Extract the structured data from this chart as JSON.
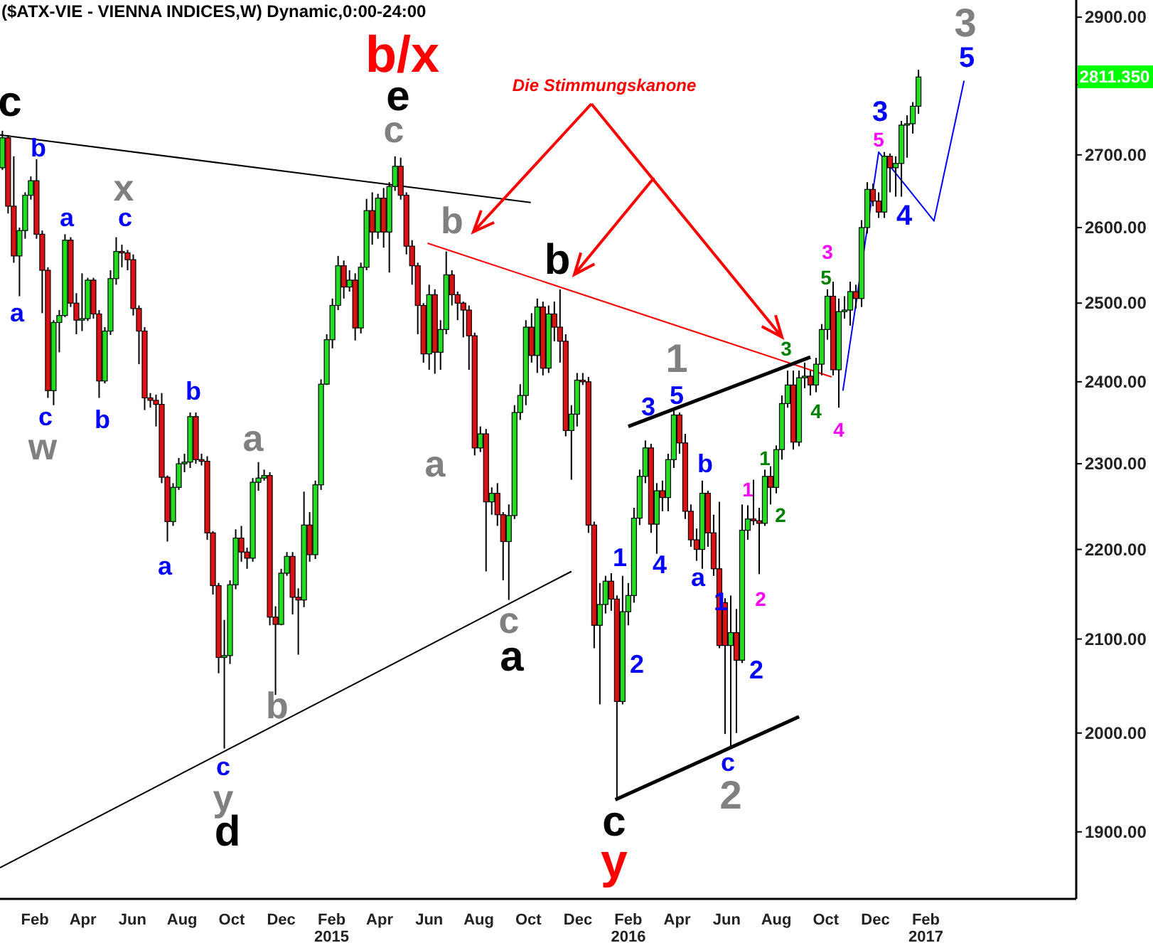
{
  "chart_data": {
    "type": "candlestick",
    "title": "($ATX-VIE - VIENNA INDICES,W) Dynamic,0:00-24:00",
    "x": [
      "2013-12-23",
      "2013-12-30",
      "2014-01-06",
      "2014-01-13",
      "2014-01-20",
      "2014-01-27",
      "2014-02-03",
      "2014-02-10",
      "2014-02-17",
      "2014-02-24",
      "2014-03-03",
      "2014-03-10",
      "2014-03-17",
      "2014-03-24",
      "2014-03-31",
      "2014-04-07",
      "2014-04-14",
      "2014-04-21",
      "2014-04-28",
      "2014-05-05",
      "2014-05-12",
      "2014-05-19",
      "2014-05-26",
      "2014-06-02",
      "2014-06-09",
      "2014-06-16",
      "2014-06-23",
      "2014-06-30",
      "2014-07-07",
      "2014-07-14",
      "2014-07-21",
      "2014-07-28",
      "2014-08-04",
      "2014-08-11",
      "2014-08-18",
      "2014-08-25",
      "2014-09-01",
      "2014-09-08",
      "2014-09-15",
      "2014-09-22",
      "2014-09-29",
      "2014-10-06",
      "2014-10-13",
      "2014-10-20",
      "2014-10-27",
      "2014-11-03",
      "2014-11-10",
      "2014-11-17",
      "2014-11-24",
      "2014-12-01",
      "2014-12-08",
      "2014-12-15",
      "2014-12-22",
      "2014-12-29",
      "2015-01-05",
      "2015-01-12",
      "2015-01-19",
      "2015-01-26",
      "2015-02-02",
      "2015-02-09",
      "2015-02-16",
      "2015-02-23",
      "2015-03-02",
      "2015-03-09",
      "2015-03-16",
      "2015-03-23",
      "2015-03-30",
      "2015-04-06",
      "2015-04-13",
      "2015-04-20",
      "2015-04-27",
      "2015-05-04",
      "2015-05-11",
      "2015-05-18",
      "2015-05-25",
      "2015-06-01",
      "2015-06-08",
      "2015-06-15",
      "2015-06-22",
      "2015-06-29",
      "2015-07-06",
      "2015-07-13",
      "2015-07-20",
      "2015-07-27",
      "2015-08-03",
      "2015-08-10",
      "2015-08-17",
      "2015-08-24",
      "2015-08-31",
      "2015-09-07",
      "2015-09-14",
      "2015-09-21",
      "2015-09-28",
      "2015-10-05",
      "2015-10-12",
      "2015-10-19",
      "2015-10-26",
      "2015-11-02",
      "2015-11-09",
      "2015-11-16",
      "2015-11-23",
      "2015-11-30",
      "2015-12-07",
      "2015-12-14",
      "2015-12-21",
      "2015-12-28",
      "2016-01-04",
      "2016-01-11",
      "2016-01-18",
      "2016-01-25",
      "2016-02-01",
      "2016-02-08",
      "2016-02-15",
      "2016-02-22",
      "2016-02-29",
      "2016-03-07",
      "2016-03-14",
      "2016-03-21",
      "2016-03-28",
      "2016-04-04",
      "2016-04-11",
      "2016-04-18",
      "2016-04-25",
      "2016-05-02",
      "2016-05-09",
      "2016-05-16",
      "2016-05-23",
      "2016-05-30",
      "2016-06-06",
      "2016-06-13",
      "2016-06-20",
      "2016-06-27",
      "2016-07-04",
      "2016-07-11",
      "2016-07-18",
      "2016-07-25",
      "2016-08-01",
      "2016-08-08",
      "2016-08-15",
      "2016-08-22",
      "2016-08-29",
      "2016-09-05",
      "2016-09-12",
      "2016-09-19",
      "2016-09-26",
      "2016-10-03",
      "2016-10-10",
      "2016-10-17",
      "2016-10-24",
      "2016-10-31",
      "2016-11-07",
      "2016-11-14",
      "2016-11-21",
      "2016-11-28",
      "2016-12-05",
      "2016-12-12",
      "2016-12-19",
      "2016-12-26",
      "2017-01-02",
      "2017-01-09",
      "2017-01-16",
      "2017-01-23"
    ],
    "ohlc": [
      [
        2682,
        2734,
        2679,
        2724
      ],
      [
        2724,
        2728,
        2619,
        2629
      ],
      [
        2629,
        2698,
        2553,
        2562
      ],
      [
        2562,
        2600,
        2509,
        2596
      ],
      [
        2596,
        2648,
        2585,
        2644
      ],
      [
        2644,
        2670,
        2638,
        2664
      ],
      [
        2664,
        2694,
        2585,
        2591
      ],
      [
        2591,
        2596,
        2487,
        2543
      ],
      [
        2543,
        2547,
        2380,
        2389
      ],
      [
        2389,
        2478,
        2371,
        2475
      ],
      [
        2475,
        2491,
        2437,
        2484
      ],
      [
        2484,
        2591,
        2482,
        2583
      ],
      [
        2583,
        2587,
        2495,
        2500
      ],
      [
        2500,
        2513,
        2460,
        2478
      ],
      [
        2478,
        2539,
        2464,
        2480
      ],
      [
        2480,
        2533,
        2477,
        2530
      ],
      [
        2530,
        2533,
        2480,
        2486
      ],
      [
        2486,
        2491,
        2380,
        2401
      ],
      [
        2401,
        2469,
        2398,
        2464
      ],
      [
        2464,
        2543,
        2459,
        2532
      ],
      [
        2532,
        2587,
        2524,
        2568
      ],
      [
        2568,
        2577,
        2547,
        2566
      ],
      [
        2566,
        2570,
        2543,
        2557
      ],
      [
        2557,
        2564,
        2484,
        2493
      ],
      [
        2493,
        2497,
        2422,
        2464
      ],
      [
        2464,
        2469,
        2365,
        2380
      ],
      [
        2380,
        2386,
        2368,
        2377
      ],
      [
        2377,
        2384,
        2345,
        2372
      ],
      [
        2372,
        2386,
        2277,
        2284
      ],
      [
        2284,
        2286,
        2209,
        2232
      ],
      [
        2232,
        2277,
        2227,
        2272
      ],
      [
        2272,
        2307,
        2269,
        2300
      ],
      [
        2300,
        2312,
        2290,
        2302
      ],
      [
        2302,
        2362,
        2295,
        2357
      ],
      [
        2357,
        2362,
        2300,
        2305
      ],
      [
        2305,
        2312,
        2298,
        2303
      ],
      [
        2303,
        2309,
        2211,
        2219
      ],
      [
        2219,
        2221,
        2149,
        2159
      ],
      [
        2159,
        2162,
        2063,
        2080
      ],
      [
        2080,
        2121,
        1984,
        2082
      ],
      [
        2082,
        2165,
        2073,
        2160
      ],
      [
        2160,
        2223,
        2155,
        2213
      ],
      [
        2213,
        2227,
        2186,
        2197
      ],
      [
        2197,
        2202,
        2178,
        2190
      ],
      [
        2190,
        2283,
        2186,
        2278
      ],
      [
        2278,
        2302,
        2268,
        2283
      ],
      [
        2283,
        2293,
        2280,
        2286
      ],
      [
        2286,
        2290,
        2115,
        2124
      ],
      [
        2124,
        2136,
        2040,
        2116
      ],
      [
        2116,
        2178,
        2115,
        2173
      ],
      [
        2173,
        2197,
        2170,
        2192
      ],
      [
        2192,
        2197,
        2127,
        2146
      ],
      [
        2146,
        2156,
        2083,
        2143
      ],
      [
        2143,
        2267,
        2135,
        2228
      ],
      [
        2228,
        2243,
        2186,
        2194
      ],
      [
        2194,
        2280,
        2189,
        2275
      ],
      [
        2275,
        2403,
        2269,
        2397
      ],
      [
        2397,
        2460,
        2396,
        2453
      ],
      [
        2453,
        2506,
        2442,
        2497
      ],
      [
        2497,
        2562,
        2491,
        2549
      ],
      [
        2549,
        2556,
        2506,
        2521
      ],
      [
        2521,
        2543,
        2515,
        2530
      ],
      [
        2530,
        2539,
        2452,
        2468
      ],
      [
        2468,
        2553,
        2461,
        2547
      ],
      [
        2547,
        2639,
        2543,
        2623
      ],
      [
        2623,
        2648,
        2577,
        2594
      ],
      [
        2594,
        2646,
        2585,
        2640
      ],
      [
        2640,
        2654,
        2573,
        2594
      ],
      [
        2594,
        2662,
        2540,
        2656
      ],
      [
        2656,
        2698,
        2650,
        2684
      ],
      [
        2684,
        2696,
        2638,
        2644
      ],
      [
        2644,
        2648,
        2564,
        2575
      ],
      [
        2575,
        2583,
        2524,
        2549
      ],
      [
        2549,
        2553,
        2460,
        2497
      ],
      [
        2497,
        2500,
        2424,
        2435
      ],
      [
        2435,
        2524,
        2415,
        2511
      ],
      [
        2511,
        2518,
        2410,
        2437
      ],
      [
        2437,
        2478,
        2415,
        2466
      ],
      [
        2466,
        2568,
        2460,
        2537
      ],
      [
        2537,
        2543,
        2497,
        2511
      ],
      [
        2511,
        2515,
        2478,
        2500
      ],
      [
        2500,
        2502,
        2456,
        2491
      ],
      [
        2491,
        2497,
        2415,
        2458
      ],
      [
        2458,
        2462,
        2310,
        2319
      ],
      [
        2319,
        2345,
        2314,
        2336
      ],
      [
        2336,
        2342,
        2175,
        2255
      ],
      [
        2255,
        2272,
        2240,
        2265
      ],
      [
        2265,
        2277,
        2227,
        2240
      ],
      [
        2240,
        2243,
        2165,
        2209
      ],
      [
        2209,
        2252,
        2143,
        2239
      ],
      [
        2239,
        2371,
        2235,
        2362
      ],
      [
        2362,
        2397,
        2353,
        2383
      ],
      [
        2383,
        2478,
        2371,
        2469
      ],
      [
        2469,
        2487,
        2424,
        2433
      ],
      [
        2433,
        2506,
        2411,
        2495
      ],
      [
        2495,
        2502,
        2408,
        2417
      ],
      [
        2417,
        2497,
        2411,
        2486
      ],
      [
        2486,
        2502,
        2451,
        2469
      ],
      [
        2469,
        2518,
        2424,
        2451
      ],
      [
        2451,
        2460,
        2333,
        2340
      ],
      [
        2340,
        2371,
        2281,
        2360
      ],
      [
        2360,
        2411,
        2345,
        2402
      ],
      [
        2402,
        2411,
        2396,
        2400
      ],
      [
        2400,
        2406,
        2219,
        2228
      ],
      [
        2228,
        2232,
        2090,
        2115
      ],
      [
        2115,
        2162,
        2030,
        2138
      ],
      [
        2138,
        2170,
        2128,
        2164
      ],
      [
        2164,
        2173,
        2131,
        2144
      ],
      [
        2144,
        2148,
        1932,
        2033
      ],
      [
        2033,
        2170,
        2030,
        2130
      ],
      [
        2130,
        2162,
        2115,
        2148
      ],
      [
        2148,
        2248,
        2140,
        2236
      ],
      [
        2236,
        2293,
        2228,
        2285
      ],
      [
        2285,
        2328,
        2277,
        2319
      ],
      [
        2319,
        2324,
        2219,
        2229
      ],
      [
        2229,
        2277,
        2195,
        2268
      ],
      [
        2268,
        2280,
        2244,
        2260
      ],
      [
        2260,
        2312,
        2244,
        2305
      ],
      [
        2305,
        2366,
        2295,
        2359
      ],
      [
        2359,
        2362,
        2312,
        2325
      ],
      [
        2325,
        2336,
        2235,
        2244
      ],
      [
        2244,
        2252,
        2203,
        2211
      ],
      [
        2211,
        2224,
        2187,
        2200
      ],
      [
        2200,
        2280,
        2178,
        2265
      ],
      [
        2265,
        2268,
        2203,
        2219
      ],
      [
        2219,
        2240,
        2170,
        2178
      ],
      [
        2178,
        2255,
        2090,
        2093
      ],
      [
        2140,
        2145,
        1999,
        2093
      ],
      [
        2093,
        2148,
        1984,
        2107
      ],
      [
        2107,
        2133,
        2000,
        2077
      ],
      [
        2077,
        2252,
        2074,
        2222
      ],
      [
        2222,
        2251,
        2211,
        2235
      ],
      [
        2235,
        2281,
        2228,
        2233
      ],
      [
        2233,
        2248,
        2172,
        2230
      ],
      [
        2230,
        2293,
        2227,
        2285
      ],
      [
        2285,
        2297,
        2252,
        2272
      ],
      [
        2272,
        2322,
        2265,
        2317
      ],
      [
        2317,
        2383,
        2305,
        2373
      ],
      [
        2373,
        2414,
        2368,
        2396
      ],
      [
        2396,
        2414,
        2317,
        2326
      ],
      [
        2326,
        2414,
        2321,
        2405
      ],
      [
        2405,
        2424,
        2392,
        2407
      ],
      [
        2407,
        2414,
        2383,
        2396
      ],
      [
        2396,
        2430,
        2387,
        2422
      ],
      [
        2422,
        2473,
        2408,
        2466
      ],
      [
        2466,
        2518,
        2453,
        2509
      ],
      [
        2509,
        2528,
        2408,
        2415
      ],
      [
        2415,
        2506,
        2368,
        2489
      ],
      [
        2489,
        2509,
        2480,
        2491
      ],
      [
        2491,
        2528,
        2471,
        2515
      ],
      [
        2515,
        2524,
        2493,
        2506
      ],
      [
        2506,
        2610,
        2495,
        2600
      ],
      [
        2600,
        2662,
        2592,
        2652
      ],
      [
        2652,
        2660,
        2629,
        2636
      ],
      [
        2636,
        2648,
        2613,
        2621
      ],
      [
        2621,
        2704,
        2613,
        2698
      ],
      [
        2698,
        2702,
        2648,
        2682
      ],
      [
        2682,
        2698,
        2642,
        2688
      ],
      [
        2688,
        2748,
        2642,
        2742
      ],
      [
        2742,
        2756,
        2696,
        2744
      ],
      [
        2744,
        2775,
        2730,
        2769
      ],
      [
        2769,
        2822,
        2758,
        2811.35
      ]
    ],
    "series": [
      {
        "type": "line",
        "color": "#000000",
        "x": [
          "2013-12-20",
          "2015-10-04"
        ],
        "values": [
          2728,
          2634
        ]
      },
      {
        "type": "line",
        "color": "#ff0000",
        "x": [
          "2015-05-30",
          "2016-10-08"
        ],
        "values": [
          2579,
          2406
        ]
      },
      {
        "type": "line",
        "color": "#000000",
        "x": [
          "2013-12-20",
          "2015-11-23"
        ],
        "values": [
          1865,
          2175
        ]
      },
      {
        "type": "line",
        "color": "#000000",
        "x": [
          "2016-01-16",
          "2016-08-29"
        ],
        "values": [
          1932,
          2017
        ]
      },
      {
        "type": "line",
        "color": "#000000",
        "x": [
          "2016-02-01",
          "2016-09-12"
        ],
        "values": [
          2345,
          2431
        ]
      },
      {
        "type": "line",
        "color": "#0000ff",
        "x": [
          "2016-10-22",
          "2016-12-05",
          "2017-02-11",
          "2017-03-20"
        ],
        "values": [
          2389,
          2704,
          2609,
          2806
        ]
      }
    ],
    "xlim": [
      "2013-12-20",
      "2017-08-05"
    ],
    "xticks": [
      {
        "value": "2014-02-01",
        "label": "Feb"
      },
      {
        "value": "2014-04-01",
        "label": "Apr"
      },
      {
        "value": "2014-06-01",
        "label": "Jun"
      },
      {
        "value": "2014-08-01",
        "label": "Aug"
      },
      {
        "value": "2014-10-01",
        "label": "Oct"
      },
      {
        "value": "2014-12-01",
        "label": "Dec"
      },
      {
        "value": "2015-02-01",
        "label": "Feb\n2015"
      },
      {
        "value": "2015-04-01",
        "label": "Apr"
      },
      {
        "value": "2015-06-01",
        "label": "Jun"
      },
      {
        "value": "2015-08-01",
        "label": "Aug"
      },
      {
        "value": "2015-10-01",
        "label": "Oct"
      },
      {
        "value": "2015-12-01",
        "label": "Dec"
      },
      {
        "value": "2016-02-01",
        "label": "Feb\n2016"
      },
      {
        "value": "2016-04-01",
        "label": "Apr"
      },
      {
        "value": "2016-06-01",
        "label": "Jun"
      },
      {
        "value": "2016-08-01",
        "label": "Aug"
      },
      {
        "value": "2016-10-01",
        "label": "Oct"
      },
      {
        "value": "2016-12-01",
        "label": "Dec"
      },
      {
        "value": "2017-02-01",
        "label": "Feb\n2017"
      }
    ],
    "ylim": [
      1835,
      2926
    ],
    "yticks": [
      {
        "value": 1900,
        "label": "1900.00"
      },
      {
        "value": 2000,
        "label": "2000.00"
      },
      {
        "value": 2100,
        "label": "2100.00"
      },
      {
        "value": 2200,
        "label": "2200.00"
      },
      {
        "value": 2300,
        "label": "2300.00"
      },
      {
        "value": 2400,
        "label": "2400.00"
      },
      {
        "value": 2500,
        "label": "2500.00"
      },
      {
        "value": 2600,
        "label": "2600.00"
      },
      {
        "value": 2700,
        "label": "2700.00"
      },
      {
        "value": 2800,
        "label": null
      },
      {
        "value": 2900,
        "label": "2900.00"
      }
    ],
    "log": true,
    "annotations": [
      "c",
      "b",
      "a",
      "a",
      "x",
      "c",
      "c",
      "w",
      "b",
      "b",
      "a",
      "a",
      "c",
      "y",
      "d",
      "b",
      "b/x",
      "e",
      "c",
      "b",
      "b",
      "a",
      "c",
      "a",
      "1",
      "3",
      "5",
      "1",
      "4",
      "2",
      "b",
      "a",
      "1",
      "1",
      "2",
      "2",
      "1",
      "2",
      "c",
      "2",
      "c",
      "y",
      "3",
      "4",
      "4",
      "3",
      "5",
      "3",
      "5",
      "4",
      "3",
      "5",
      "Die Stimmungskanone",
      "2811.350"
    ]
  }
}
